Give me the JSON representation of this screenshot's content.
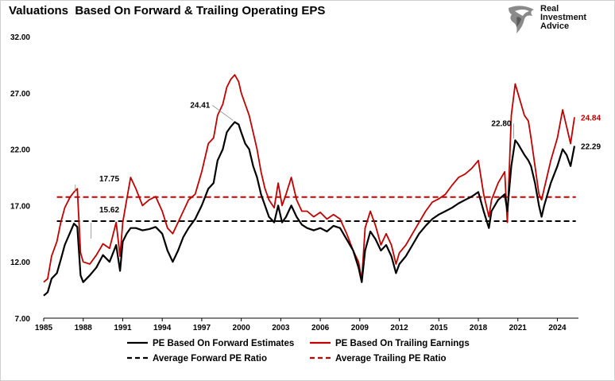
{
  "chart_data": {
    "type": "line",
    "title": "Valuations  Based On Forward & Trailing Operating EPS",
    "xlabel": "",
    "ylabel": "",
    "xlim": [
      1985,
      2025.6
    ],
    "ylim": [
      7.0,
      32.0
    ],
    "x_ticks": [
      "1985",
      "1988",
      "1991",
      "1994",
      "1997",
      "2000",
      "2003",
      "2006",
      "2009",
      "2012",
      "2015",
      "2018",
      "2021",
      "2024"
    ],
    "y_ticks": [
      "7.00",
      "12.00",
      "17.00",
      "22.00",
      "27.00",
      "32.00"
    ],
    "grid": false,
    "legend_position": "bottom",
    "series": [
      {
        "name": "PE Based On Forward Estimates",
        "color": "#000000",
        "style": "solid",
        "x": [
          1985.0,
          1985.3,
          1985.6,
          1986.0,
          1986.3,
          1986.6,
          1987.0,
          1987.3,
          1987.55,
          1987.8,
          1988.0,
          1988.5,
          1989.0,
          1989.5,
          1990.0,
          1990.5,
          1990.8,
          1991.0,
          1991.3,
          1991.6,
          1992.0,
          1992.5,
          1993.0,
          1993.5,
          1994.0,
          1994.4,
          1994.8,
          1995.2,
          1995.6,
          1996.0,
          1996.5,
          1997.0,
          1997.5,
          1997.9,
          1998.2,
          1998.6,
          1998.9,
          1999.2,
          1999.5,
          1999.8,
          2000.0,
          2000.3,
          2000.6,
          2000.9,
          2001.2,
          2001.5,
          2001.8,
          2002.1,
          2002.5,
          2002.8,
          2003.1,
          2003.4,
          2003.8,
          2004.2,
          2004.6,
          2005.0,
          2005.5,
          2006.0,
          2006.5,
          2007.0,
          2007.5,
          2008.0,
          2008.5,
          2008.9,
          2009.15,
          2009.4,
          2009.8,
          2010.2,
          2010.6,
          2011.0,
          2011.4,
          2011.75,
          2012.0,
          2012.5,
          2013.0,
          2013.5,
          2014.0,
          2014.5,
          2015.0,
          2015.5,
          2016.0,
          2016.5,
          2017.0,
          2017.5,
          2018.0,
          2018.4,
          2018.8,
          2019.0,
          2019.5,
          2020.0,
          2020.2,
          2020.5,
          2020.8,
          2021.0,
          2021.5,
          2021.8,
          2022.0,
          2022.3,
          2022.6,
          2022.8,
          2023.0,
          2023.5,
          2024.0,
          2024.4,
          2024.7,
          2025.0,
          2025.3
        ],
        "y": [
          9.0,
          9.3,
          10.5,
          11.0,
          12.2,
          13.5,
          14.6,
          15.4,
          15.1,
          10.8,
          10.2,
          10.8,
          11.5,
          12.6,
          12.0,
          13.5,
          11.2,
          13.8,
          14.5,
          15.0,
          15.0,
          14.8,
          14.9,
          15.1,
          14.5,
          13.0,
          12.0,
          13.0,
          14.2,
          15.0,
          15.8,
          17.0,
          18.5,
          19.0,
          21.0,
          22.0,
          23.5,
          24.0,
          24.41,
          24.2,
          23.5,
          22.5,
          22.0,
          20.5,
          19.5,
          18.0,
          17.0,
          16.0,
          15.5,
          17.0,
          15.5,
          16.0,
          17.0,
          16.0,
          15.3,
          15.0,
          14.8,
          15.0,
          14.7,
          15.2,
          15.0,
          14.0,
          13.0,
          11.5,
          10.2,
          13.0,
          14.7,
          14.0,
          13.0,
          13.5,
          12.5,
          11.0,
          11.8,
          12.5,
          13.5,
          14.5,
          15.2,
          15.8,
          16.2,
          16.5,
          16.8,
          17.2,
          17.5,
          17.8,
          18.2,
          16.5,
          15.0,
          16.5,
          17.5,
          18.0,
          16.5,
          20.5,
          22.8,
          22.5,
          21.5,
          21.0,
          20.5,
          19.0,
          17.0,
          16.0,
          17.0,
          19.0,
          20.5,
          22.0,
          21.5,
          20.5,
          22.29
        ]
      },
      {
        "name": "PE Based On Trailing Earnings",
        "color": "#c00000",
        "style": "solid",
        "x": [
          1985.0,
          1985.3,
          1985.6,
          1986.0,
          1986.3,
          1986.6,
          1987.0,
          1987.3,
          1987.55,
          1987.8,
          1988.0,
          1988.5,
          1989.0,
          1989.5,
          1990.0,
          1990.5,
          1990.8,
          1991.0,
          1991.3,
          1991.6,
          1992.0,
          1992.5,
          1993.0,
          1993.5,
          1994.0,
          1994.4,
          1994.8,
          1995.2,
          1995.6,
          1996.0,
          1996.5,
          1997.0,
          1997.5,
          1997.9,
          1998.2,
          1998.6,
          1998.9,
          1999.2,
          1999.5,
          1999.8,
          2000.0,
          2000.3,
          2000.6,
          2000.9,
          2001.2,
          2001.5,
          2001.8,
          2002.1,
          2002.5,
          2002.8,
          2003.1,
          2003.4,
          2003.8,
          2004.2,
          2004.6,
          2005.0,
          2005.5,
          2006.0,
          2006.5,
          2007.0,
          2007.5,
          2008.0,
          2008.5,
          2008.9,
          2009.15,
          2009.4,
          2009.8,
          2010.2,
          2010.6,
          2011.0,
          2011.4,
          2011.75,
          2012.0,
          2012.5,
          2013.0,
          2013.5,
          2014.0,
          2014.5,
          2015.0,
          2015.5,
          2016.0,
          2016.5,
          2017.0,
          2017.5,
          2018.0,
          2018.4,
          2018.8,
          2019.0,
          2019.5,
          2020.0,
          2020.2,
          2020.5,
          2020.8,
          2021.0,
          2021.5,
          2021.8,
          2022.0,
          2022.3,
          2022.6,
          2022.8,
          2023.0,
          2023.5,
          2024.0,
          2024.4,
          2024.7,
          2025.0,
          2025.3
        ],
        "y": [
          10.2,
          10.5,
          12.5,
          13.8,
          15.5,
          16.8,
          17.75,
          18.2,
          18.5,
          12.8,
          12.0,
          11.8,
          12.6,
          13.6,
          13.2,
          15.5,
          12.5,
          15.5,
          17.5,
          19.5,
          18.5,
          17.0,
          17.5,
          17.8,
          16.5,
          15.0,
          14.5,
          15.5,
          16.5,
          17.5,
          18.0,
          20.0,
          22.5,
          23.0,
          25.0,
          26.0,
          27.5,
          28.2,
          28.6,
          28.0,
          27.0,
          26.0,
          25.0,
          23.5,
          22.0,
          20.0,
          18.5,
          17.5,
          16.8,
          19.0,
          17.0,
          18.0,
          19.5,
          17.5,
          16.5,
          16.5,
          16.0,
          16.4,
          15.8,
          16.2,
          15.8,
          14.5,
          13.0,
          12.0,
          10.4,
          15.0,
          16.5,
          15.2,
          13.5,
          14.5,
          13.5,
          11.8,
          12.8,
          13.5,
          14.5,
          15.5,
          16.5,
          17.3,
          17.6,
          18.0,
          18.8,
          19.5,
          19.8,
          20.3,
          21.0,
          18.0,
          16.0,
          17.5,
          19.0,
          20.0,
          15.5,
          25.0,
          27.8,
          27.0,
          25.0,
          24.5,
          23.0,
          20.5,
          18.0,
          17.5,
          18.5,
          21.0,
          23.0,
          25.5,
          24.0,
          22.5,
          24.84
        ]
      },
      {
        "name": "Average Forward PE Ratio",
        "color": "#000000",
        "style": "dashed",
        "value": 15.62
      },
      {
        "name": "Average Trailing PE Ratio",
        "color": "#c00000",
        "style": "dashed",
        "value": 17.75
      }
    ],
    "annotations": [
      {
        "text": "24.41",
        "x": 1999.5,
        "y": 24.41,
        "color": "#000000"
      },
      {
        "text": "22.80",
        "x": 2020.8,
        "y": 22.8,
        "color": "#000000"
      },
      {
        "text": "17.75",
        "x": 1987.0,
        "y": 17.75,
        "color": "#000000"
      },
      {
        "text": "15.62",
        "x": 1987.0,
        "y": 15.62,
        "color": "#000000"
      },
      {
        "text": "24.84",
        "x": 2025.3,
        "y": 24.84,
        "color": "#c00000"
      },
      {
        "text": "22.29",
        "x": 2025.3,
        "y": 22.29,
        "color": "#000000"
      }
    ]
  },
  "logo": {
    "line1": "Real",
    "line2": "Investment",
    "line3": "Advice",
    "icon": "eagle-head-icon"
  }
}
